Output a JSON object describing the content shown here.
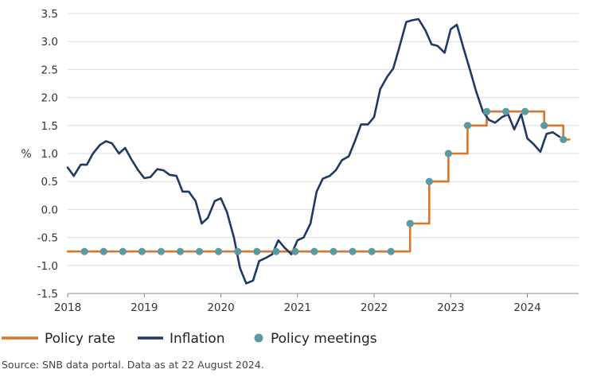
{
  "chart_data": {
    "type": "line",
    "ylabel": "%",
    "xlabel": "",
    "ylim": [
      -1.5,
      3.5
    ],
    "yticks": [
      -1.5,
      -1.0,
      -0.5,
      0.0,
      0.5,
      1.0,
      1.5,
      2.0,
      2.5,
      3.0,
      3.5
    ],
    "ytick_labels": [
      "-1.5",
      "-1.0",
      "-0.5",
      "0.0",
      "0.5",
      "1.0",
      "1.5",
      "2.0",
      "2.5",
      "3.0",
      "3.5"
    ],
    "xlim": [
      2018.0,
      2024.67
    ],
    "xticks": [
      2018,
      2019,
      2020,
      2021,
      2022,
      2023,
      2024
    ],
    "xtick_labels": [
      "2018",
      "2019",
      "2020",
      "2021",
      "2022",
      "2023",
      "2024"
    ],
    "grid": "horizontal",
    "legend": "bottom",
    "source": "Source: SNB data portal. Data as at 22 August 2024.",
    "colors": {
      "policy_rate": "#d9762b",
      "inflation": "#1f3864",
      "meetings": "#5b9aa0",
      "grid": "#dcdcdc",
      "axis": "#888888"
    },
    "series": [
      {
        "name": "Policy rate",
        "kind": "step",
        "points": [
          [
            2018.0,
            -0.75
          ],
          [
            2022.47,
            -0.75
          ],
          [
            2022.47,
            -0.25
          ],
          [
            2022.72,
            -0.25
          ],
          [
            2022.72,
            0.5
          ],
          [
            2022.97,
            0.5
          ],
          [
            2022.97,
            1.0
          ],
          [
            2023.22,
            1.0
          ],
          [
            2023.22,
            1.5
          ],
          [
            2023.47,
            1.5
          ],
          [
            2023.47,
            1.75
          ],
          [
            2024.22,
            1.75
          ],
          [
            2024.22,
            1.5
          ],
          [
            2024.47,
            1.5
          ],
          [
            2024.47,
            1.25
          ],
          [
            2024.55,
            1.25
          ]
        ]
      },
      {
        "name": "Inflation",
        "kind": "line",
        "points": [
          [
            2018.0,
            0.75
          ],
          [
            2018.08,
            0.6
          ],
          [
            2018.17,
            0.8
          ],
          [
            2018.25,
            0.8
          ],
          [
            2018.33,
            1.0
          ],
          [
            2018.42,
            1.15
          ],
          [
            2018.5,
            1.22
          ],
          [
            2018.58,
            1.18
          ],
          [
            2018.67,
            1.0
          ],
          [
            2018.75,
            1.1
          ],
          [
            2018.83,
            0.9
          ],
          [
            2018.92,
            0.7
          ],
          [
            2019.0,
            0.56
          ],
          [
            2019.08,
            0.58
          ],
          [
            2019.17,
            0.72
          ],
          [
            2019.25,
            0.7
          ],
          [
            2019.33,
            0.62
          ],
          [
            2019.42,
            0.6
          ],
          [
            2019.5,
            0.32
          ],
          [
            2019.58,
            0.32
          ],
          [
            2019.67,
            0.15
          ],
          [
            2019.75,
            -0.25
          ],
          [
            2019.83,
            -0.15
          ],
          [
            2019.92,
            0.15
          ],
          [
            2020.0,
            0.2
          ],
          [
            2020.08,
            -0.05
          ],
          [
            2020.17,
            -0.5
          ],
          [
            2020.25,
            -1.05
          ],
          [
            2020.33,
            -1.32
          ],
          [
            2020.42,
            -1.27
          ],
          [
            2020.5,
            -0.92
          ],
          [
            2020.58,
            -0.87
          ],
          [
            2020.67,
            -0.8
          ],
          [
            2020.75,
            -0.55
          ],
          [
            2020.83,
            -0.68
          ],
          [
            2020.92,
            -0.8
          ],
          [
            2021.0,
            -0.55
          ],
          [
            2021.08,
            -0.5
          ],
          [
            2021.17,
            -0.25
          ],
          [
            2021.25,
            0.32
          ],
          [
            2021.33,
            0.55
          ],
          [
            2021.42,
            0.6
          ],
          [
            2021.5,
            0.7
          ],
          [
            2021.58,
            0.88
          ],
          [
            2021.67,
            0.95
          ],
          [
            2021.75,
            1.22
          ],
          [
            2021.83,
            1.52
          ],
          [
            2021.92,
            1.52
          ],
          [
            2022.0,
            1.65
          ],
          [
            2022.08,
            2.15
          ],
          [
            2022.17,
            2.37
          ],
          [
            2022.25,
            2.52
          ],
          [
            2022.33,
            2.9
          ],
          [
            2022.42,
            3.35
          ],
          [
            2022.5,
            3.38
          ],
          [
            2022.58,
            3.4
          ],
          [
            2022.67,
            3.2
          ],
          [
            2022.75,
            2.95
          ],
          [
            2022.83,
            2.92
          ],
          [
            2022.92,
            2.8
          ],
          [
            2023.0,
            3.22
          ],
          [
            2023.08,
            3.3
          ],
          [
            2023.17,
            2.87
          ],
          [
            2023.25,
            2.5
          ],
          [
            2023.33,
            2.12
          ],
          [
            2023.42,
            1.75
          ],
          [
            2023.5,
            1.6
          ],
          [
            2023.58,
            1.55
          ],
          [
            2023.67,
            1.65
          ],
          [
            2023.75,
            1.7
          ],
          [
            2023.83,
            1.43
          ],
          [
            2023.92,
            1.7
          ],
          [
            2024.0,
            1.27
          ],
          [
            2024.08,
            1.17
          ],
          [
            2024.17,
            1.03
          ],
          [
            2024.25,
            1.35
          ],
          [
            2024.33,
            1.38
          ],
          [
            2024.42,
            1.3
          ]
        ]
      },
      {
        "name": "Policy meetings",
        "kind": "markers",
        "points": [
          [
            2018.22,
            -0.75
          ],
          [
            2018.47,
            -0.75
          ],
          [
            2018.72,
            -0.75
          ],
          [
            2018.97,
            -0.75
          ],
          [
            2019.22,
            -0.75
          ],
          [
            2019.47,
            -0.75
          ],
          [
            2019.72,
            -0.75
          ],
          [
            2019.97,
            -0.75
          ],
          [
            2020.22,
            -0.75
          ],
          [
            2020.47,
            -0.75
          ],
          [
            2020.72,
            -0.75
          ],
          [
            2020.97,
            -0.75
          ],
          [
            2021.22,
            -0.75
          ],
          [
            2021.47,
            -0.75
          ],
          [
            2021.72,
            -0.75
          ],
          [
            2021.97,
            -0.75
          ],
          [
            2022.22,
            -0.75
          ],
          [
            2022.47,
            -0.25
          ],
          [
            2022.72,
            0.5
          ],
          [
            2022.97,
            1.0
          ],
          [
            2023.22,
            1.5
          ],
          [
            2023.47,
            1.75
          ],
          [
            2023.72,
            1.75
          ],
          [
            2023.97,
            1.75
          ],
          [
            2024.22,
            1.5
          ],
          [
            2024.47,
            1.25
          ]
        ]
      }
    ]
  }
}
